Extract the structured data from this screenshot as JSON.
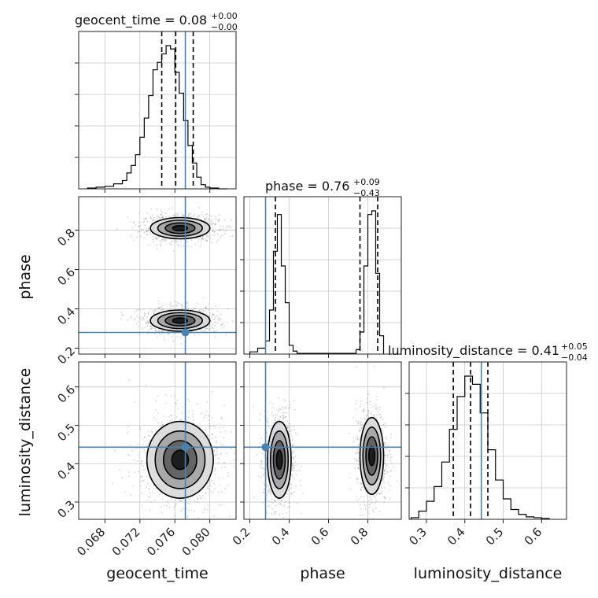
{
  "chart_data": {
    "type": "corner",
    "parameters": [
      "geocent_time",
      "phase",
      "luminosity_distance"
    ],
    "axis_labels": {
      "x": [
        "geocent_time",
        "phase",
        "luminosity_distance"
      ],
      "y": [
        "",
        "phase",
        "luminosity_distance"
      ]
    },
    "truths": {
      "geocent_time": 0.0772,
      "phase": 0.28,
      "luminosity_distance": 0.443
    },
    "colors": {
      "truth": "#4682b4",
      "hist": "#000000",
      "quantile": "#000000",
      "scatter": "#888888"
    },
    "ranges": {
      "geocent_time": [
        0.065,
        0.083
      ],
      "phase": [
        0.17,
        0.97
      ],
      "luminosity_distance": [
        0.255,
        0.665
      ]
    },
    "ticks": {
      "geocent_time": [
        0.068,
        0.072,
        0.076,
        0.08
      ],
      "phase_x": [
        0.2,
        0.4,
        0.6,
        0.8
      ],
      "phase_y": [
        0.2,
        0.4,
        0.6,
        0.8
      ],
      "luminosity_distance_x": [
        0.3,
        0.4,
        0.5,
        0.6
      ],
      "luminosity_distance_y": [
        0.3,
        0.4,
        0.5,
        0.6
      ]
    },
    "tick_labels": {
      "geocent_time": [
        "0.068",
        "0.072",
        "0.076",
        "0.080"
      ],
      "phase": [
        "0.2",
        "0.4",
        "0.6",
        "0.8"
      ],
      "luminosity_distance": [
        "0.3",
        "0.4",
        "0.5",
        "0.6"
      ]
    },
    "titles": {
      "geocent_time": {
        "main": "geocent_time = 0.08",
        "plus": "+0.00",
        "minus": "−0.00"
      },
      "phase": {
        "main": "phase = 0.76",
        "plus": "+0.09",
        "minus": "−0.43"
      },
      "luminosity_distance": {
        "main": "luminosity_distance = 0.41",
        "plus": "+0.05",
        "minus": "−0.04"
      }
    },
    "histograms": {
      "geocent_time": {
        "bin_edges": [
          0.066,
          0.067,
          0.068,
          0.069,
          0.07,
          0.0705,
          0.071,
          0.0715,
          0.072,
          0.0725,
          0.073,
          0.0735,
          0.074,
          0.0745,
          0.075,
          0.0755,
          0.076,
          0.0765,
          0.077,
          0.0775,
          0.078,
          0.0785,
          0.079,
          0.0795,
          0.08,
          0.0805,
          0.081,
          0.0815,
          0.082
        ],
        "counts": [
          1,
          2,
          3,
          6,
          10,
          19,
          28,
          41,
          62,
          85,
          112,
          143,
          152,
          162,
          172,
          168,
          140,
          115,
          82,
          52,
          31,
          14,
          5,
          2,
          1,
          1,
          0,
          0
        ],
        "quantiles": [
          0.0745,
          0.0761,
          0.0781
        ]
      },
      "phase": {
        "bin_edges": [
          0.2,
          0.24,
          0.28,
          0.3,
          0.32,
          0.34,
          0.36,
          0.38,
          0.4,
          0.42,
          0.44,
          0.74,
          0.76,
          0.78,
          0.8,
          0.82,
          0.84,
          0.86,
          0.88
        ],
        "counts": [
          3,
          8,
          18,
          60,
          140,
          190,
          120,
          70,
          12,
          4,
          1,
          6,
          30,
          120,
          190,
          195,
          110,
          25
        ],
        "quantiles": [
          0.33,
          0.76,
          0.85
        ]
      },
      "luminosity_distance": {
        "bin_edges": [
          0.26,
          0.28,
          0.3,
          0.32,
          0.34,
          0.36,
          0.38,
          0.4,
          0.42,
          0.44,
          0.46,
          0.48,
          0.5,
          0.52,
          0.54,
          0.56,
          0.58,
          0.6,
          0.62
        ],
        "counts": [
          2,
          10,
          22,
          40,
          70,
          110,
          150,
          175,
          165,
          130,
          85,
          48,
          25,
          12,
          6,
          3,
          2,
          1
        ],
        "quantiles": [
          0.37,
          0.415,
          0.46
        ]
      }
    },
    "modes_2d": {
      "geocent_time_vs_phase": [
        {
          "center_x": 0.0766,
          "center_y": 0.81,
          "sigma_x": 0.0017,
          "sigma_y": 0.027
        },
        {
          "center_x": 0.0766,
          "center_y": 0.34,
          "sigma_x": 0.0017,
          "sigma_y": 0.027
        }
      ],
      "geocent_time_vs_luminosity_distance": [
        {
          "center_x": 0.0766,
          "center_y": 0.41,
          "sigma_x": 0.0019,
          "sigma_y": 0.05
        }
      ],
      "phase_vs_luminosity_distance": [
        {
          "center_x": 0.35,
          "center_y": 0.41,
          "sigma_x": 0.03,
          "sigma_y": 0.05
        },
        {
          "center_x": 0.82,
          "center_y": 0.42,
          "sigma_x": 0.03,
          "sigma_y": 0.05
        }
      ]
    },
    "contour_levels_sigma": [
      0.5,
      1.0,
      1.5,
      2.0
    ]
  }
}
